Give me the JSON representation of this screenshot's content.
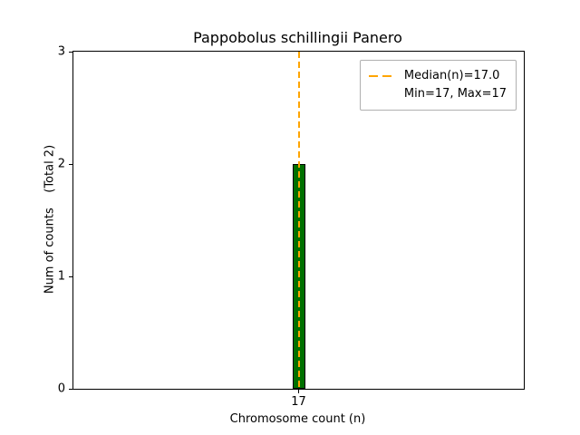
{
  "chart_data": {
    "type": "bar",
    "title": "Pappobolus schillingii Panero",
    "xlabel": "Chromosome count (n)",
    "ylabel": "Num of counts    (Total 2)",
    "categories": [
      "17"
    ],
    "values": [
      2
    ],
    "total_counts": 2,
    "ylim": [
      0,
      3
    ],
    "yticks": [
      0,
      1,
      2,
      3
    ],
    "grid": false,
    "bar_color": "#007000",
    "bar_edge_color": "#000000",
    "median": 17.0,
    "min": 17,
    "max": 17,
    "median_line_color": "#ffa500",
    "median_line_style": "dashed",
    "legend": {
      "position": "upper right",
      "entries": [
        "Median(n)=17.0",
        "Min=17, Max=17"
      ]
    }
  }
}
